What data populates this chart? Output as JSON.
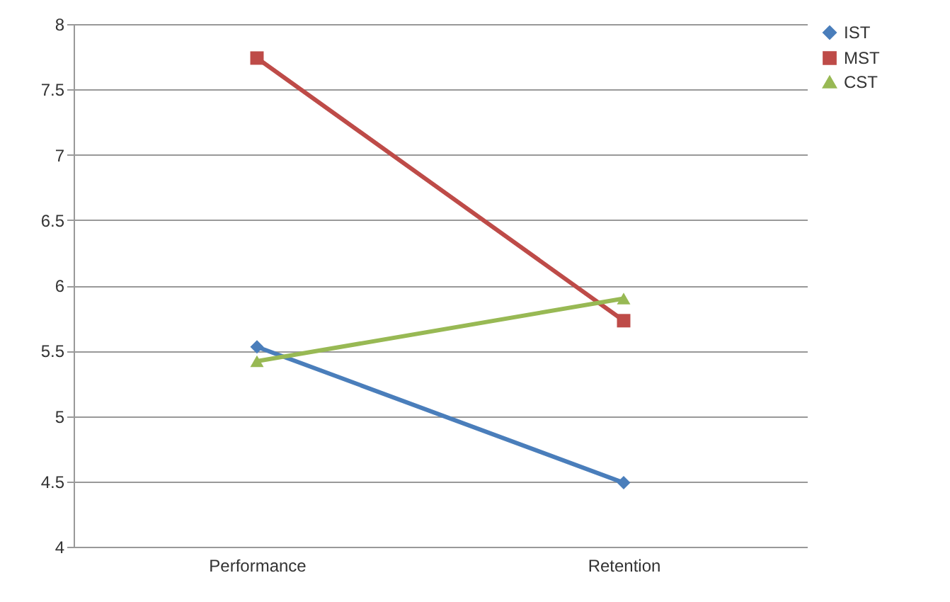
{
  "chart_data": {
    "type": "line",
    "categories": [
      "Performance",
      "Retention"
    ],
    "series": [
      {
        "name": "IST",
        "color": "#4a7ebb",
        "values": [
          5.53,
          4.49
        ],
        "marker": "diamond"
      },
      {
        "name": "MST",
        "color": "#be4b48",
        "values": [
          7.74,
          5.73
        ],
        "marker": "square"
      },
      {
        "name": "CST",
        "color": "#98b954",
        "values": [
          5.42,
          5.9
        ],
        "marker": "triangle"
      }
    ],
    "ylim": [
      4,
      8
    ],
    "yticks": [
      4,
      4.5,
      5,
      5.5,
      6,
      6.5,
      7,
      7.5,
      8
    ],
    "grid": "y",
    "legend": "right",
    "line_style": "solid"
  }
}
